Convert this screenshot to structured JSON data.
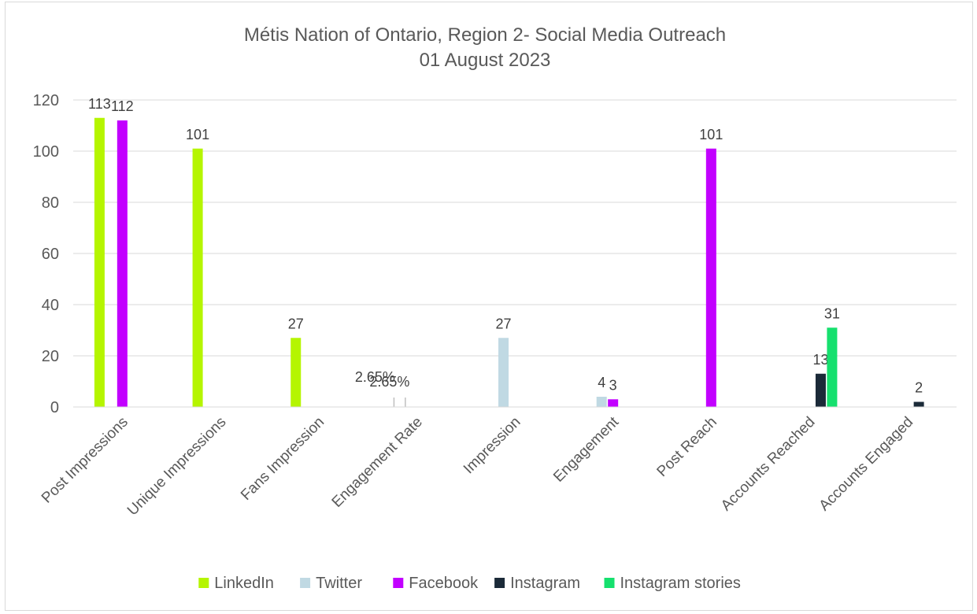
{
  "chart_data": {
    "type": "bar",
    "title": "Métis Nation of Ontario, Region 2- Social Media Outreach",
    "subtitle": "01 August 2023",
    "ylim": [
      0,
      120
    ],
    "yticks": [
      0,
      20,
      40,
      60,
      80,
      100,
      120
    ],
    "grid": true,
    "legend_position": "bottom",
    "categories": [
      "Post Impressions",
      "Unique Impressions",
      "Fans Impression",
      "Engagement Rate",
      "Impression",
      "Engagement",
      "Post Reach",
      "Accounts Reached",
      "Accounts Engaged"
    ],
    "series": [
      {
        "name": "LinkedIn",
        "color": "#b5f500",
        "values": [
          113,
          101,
          27,
          0.0265,
          null,
          null,
          null,
          null,
          null
        ],
        "labels": [
          "113",
          "101",
          "27",
          "2.65%",
          "",
          "",
          "",
          "",
          ""
        ]
      },
      {
        "name": "Twitter",
        "color": "#c0d9e3",
        "values": [
          null,
          null,
          null,
          0.0265,
          27,
          4,
          null,
          null,
          null
        ],
        "labels": [
          "",
          "",
          "",
          "2.65%",
          "27",
          "4",
          "",
          "",
          ""
        ]
      },
      {
        "name": "Facebook",
        "color": "#c200ff",
        "values": [
          112,
          null,
          null,
          null,
          null,
          3,
          101,
          null,
          null
        ],
        "labels": [
          "112",
          "",
          "",
          "",
          "",
          "3",
          "101",
          "",
          ""
        ]
      },
      {
        "name": "Instagram",
        "color": "#1b2a38",
        "values": [
          null,
          null,
          null,
          null,
          null,
          null,
          null,
          13,
          2
        ],
        "labels": [
          "",
          "",
          "",
          "",
          "",
          "",
          "",
          "13",
          "2"
        ]
      },
      {
        "name": "Instagram stories",
        "color": "#16e06e",
        "values": [
          null,
          null,
          null,
          null,
          null,
          null,
          null,
          31,
          null
        ],
        "labels": [
          "",
          "",
          "",
          "",
          "",
          "",
          "",
          "31",
          ""
        ]
      }
    ]
  }
}
